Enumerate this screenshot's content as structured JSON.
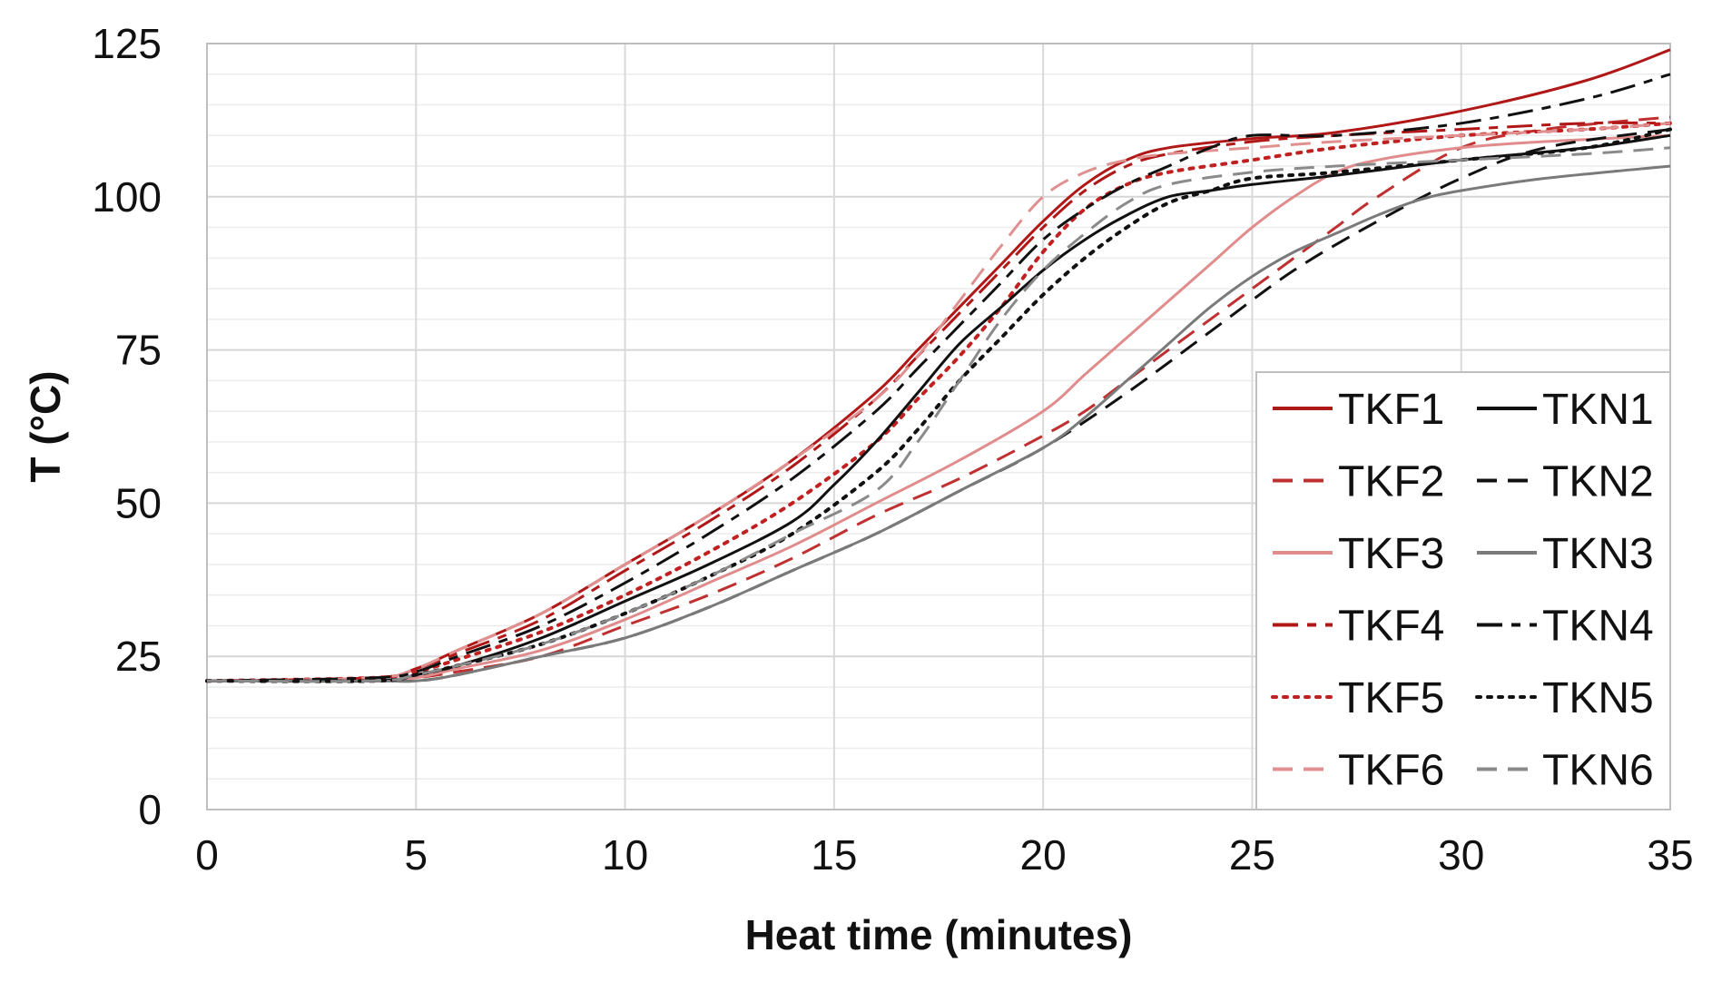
{
  "chart_data": {
    "type": "line",
    "title": "",
    "xlabel": "Heat time (minutes)",
    "ylabel": "T (°C)",
    "xlim": [
      0,
      35
    ],
    "ylim": [
      0,
      125
    ],
    "xticks": [
      0,
      5,
      10,
      15,
      20,
      25,
      30,
      35
    ],
    "yticks": [
      0,
      25,
      50,
      75,
      100,
      125
    ],
    "grid": true,
    "legend_position": "bottom-right",
    "series": [
      {
        "name": "TKF1",
        "color": "#b01818",
        "dash": "solid",
        "width": 3,
        "x": [
          0,
          4,
          5,
          6,
          8,
          10,
          12,
          14,
          16,
          17,
          18,
          19,
          20,
          21,
          22,
          23,
          25,
          27,
          30,
          33,
          35
        ],
        "y": [
          21,
          21.5,
          23,
          26,
          32,
          40,
          48,
          57,
          68,
          75,
          82,
          89,
          96,
          102,
          106,
          108,
          109.5,
          110.5,
          114,
          119,
          124
        ]
      },
      {
        "name": "TKF2",
        "color": "#c03030",
        "dash": "dashed",
        "width": 3,
        "x": [
          0,
          4,
          5,
          6,
          8,
          10,
          12,
          14,
          16,
          18,
          20,
          21,
          22,
          23,
          24,
          25,
          26,
          27,
          28,
          30,
          32,
          35
        ],
        "y": [
          21,
          21,
          21.5,
          22.5,
          25,
          30,
          35,
          41,
          48,
          54,
          61,
          65,
          70,
          75,
          80,
          85,
          90,
          95,
          100,
          108,
          111,
          113
        ]
      },
      {
        "name": "TKF3",
        "color": "#e08c8c",
        "dash": "solid",
        "width": 3,
        "x": [
          0,
          4,
          5,
          6,
          8,
          10,
          12,
          14,
          16,
          18,
          20,
          21,
          22,
          23,
          24,
          25,
          26,
          27,
          28,
          30,
          32,
          35
        ],
        "y": [
          21,
          21,
          21.5,
          23,
          26,
          31,
          37,
          43,
          50,
          57,
          65,
          71,
          77,
          83,
          89,
          95,
          100,
          104,
          106,
          108,
          109,
          110
        ]
      },
      {
        "name": "TKF4",
        "color": "#b01818",
        "dash": "dashdot",
        "width": 3,
        "x": [
          0,
          4,
          5,
          6,
          8,
          10,
          12,
          14,
          16,
          17,
          18,
          19,
          20,
          21,
          22,
          23,
          25,
          27,
          30,
          33,
          35
        ],
        "y": [
          21,
          21.5,
          23,
          25.5,
          31,
          39,
          47,
          56,
          67,
          74,
          81,
          88,
          95,
          101,
          105,
          107,
          109,
          110,
          111,
          112,
          112
        ]
      },
      {
        "name": "TKF5",
        "color": "#c02020",
        "dash": "dotted",
        "width": 4,
        "x": [
          0,
          4,
          5,
          6,
          8,
          10,
          12,
          14,
          16,
          17,
          18,
          19,
          20,
          21,
          22,
          23,
          25,
          27,
          30,
          33,
          35
        ],
        "y": [
          21,
          21.5,
          22.5,
          24.5,
          29,
          35,
          42,
          50,
          60,
          67,
          74,
          82,
          91,
          98,
          102,
          104,
          106,
          108,
          110,
          111,
          112
        ]
      },
      {
        "name": "TKF6",
        "color": "#e09090",
        "dash": "dashed",
        "width": 3,
        "x": [
          0,
          4,
          5,
          6,
          8,
          10,
          12,
          14,
          16,
          17,
          18,
          19,
          20,
          21,
          22,
          23,
          25,
          27,
          30,
          33,
          35
        ],
        "y": [
          21,
          21.5,
          23,
          26,
          32,
          40,
          48,
          57,
          67,
          74,
          83,
          92,
          100,
          104,
          106,
          107,
          108,
          109,
          110,
          111,
          112
        ]
      },
      {
        "name": "TKN1",
        "color": "#111111",
        "dash": "solid",
        "width": 3,
        "x": [
          0,
          4,
          5,
          6,
          8,
          10,
          12,
          14,
          15,
          16,
          17,
          18,
          19,
          20,
          21,
          22,
          23,
          24,
          25,
          27,
          30,
          33,
          35
        ],
        "y": [
          21,
          21,
          22,
          23.5,
          28,
          34,
          40,
          47,
          53,
          60,
          68,
          76,
          82,
          88,
          93,
          97,
          100,
          101,
          102,
          103.5,
          106,
          108,
          110
        ]
      },
      {
        "name": "TKN2",
        "color": "#111111",
        "dash": "dashed",
        "width": 3,
        "x": [
          0,
          4,
          5,
          6,
          8,
          10,
          12,
          14,
          16,
          18,
          20,
          22,
          24,
          26,
          28,
          30,
          32,
          35
        ],
        "y": [
          21,
          21,
          21,
          22,
          25,
          28,
          33,
          39,
          45,
          52,
          59,
          68,
          78,
          88,
          96,
          103,
          108,
          111
        ]
      },
      {
        "name": "TKN3",
        "color": "#7a7a7a",
        "dash": "solid",
        "width": 3,
        "x": [
          0,
          4,
          5,
          6,
          8,
          10,
          12,
          14,
          16,
          18,
          20,
          21,
          22,
          23,
          24,
          25,
          26,
          27,
          28,
          29,
          30,
          32,
          35
        ],
        "y": [
          21,
          21,
          21,
          22,
          25,
          28,
          33,
          39,
          45,
          52,
          59,
          64,
          70,
          76,
          82,
          87,
          91,
          94,
          97,
          99.5,
          101,
          103,
          105
        ]
      },
      {
        "name": "TKN4",
        "color": "#111111",
        "dash": "dashdot",
        "width": 3,
        "x": [
          0,
          4,
          5,
          6,
          8,
          10,
          12,
          14,
          16,
          17,
          18,
          19,
          20,
          21,
          22,
          23,
          24,
          25,
          27,
          30,
          33,
          35
        ],
        "y": [
          21,
          21.5,
          22.5,
          25,
          30,
          37,
          45,
          54,
          65,
          72,
          79,
          86,
          93,
          98,
          102,
          105,
          108,
          110,
          110,
          112,
          116,
          120
        ]
      },
      {
        "name": "TKN5",
        "color": "#111111",
        "dash": "dotted",
        "width": 4,
        "x": [
          0,
          4,
          5,
          6,
          8,
          10,
          12,
          14,
          16,
          17,
          18,
          19,
          20,
          21,
          22,
          23,
          24,
          25,
          27,
          30,
          33,
          35
        ],
        "y": [
          21,
          21,
          22,
          23.5,
          27,
          32,
          38,
          45,
          55,
          62,
          70,
          77,
          84,
          90,
          95,
          99,
          101,
          103,
          104,
          106,
          108,
          111
        ]
      },
      {
        "name": "TKN6",
        "color": "#8a8a8a",
        "dash": "dashed",
        "width": 3,
        "x": [
          0,
          4,
          5,
          6,
          8,
          10,
          12,
          14,
          16,
          17,
          18,
          19,
          20,
          21,
          22,
          23,
          25,
          27,
          30,
          33,
          35
        ],
        "y": [
          21,
          21,
          22,
          23.5,
          27,
          32,
          38,
          45,
          52,
          60,
          70,
          80,
          88,
          94,
          99,
          102,
          104,
          105,
          106,
          107,
          108
        ]
      }
    ]
  }
}
